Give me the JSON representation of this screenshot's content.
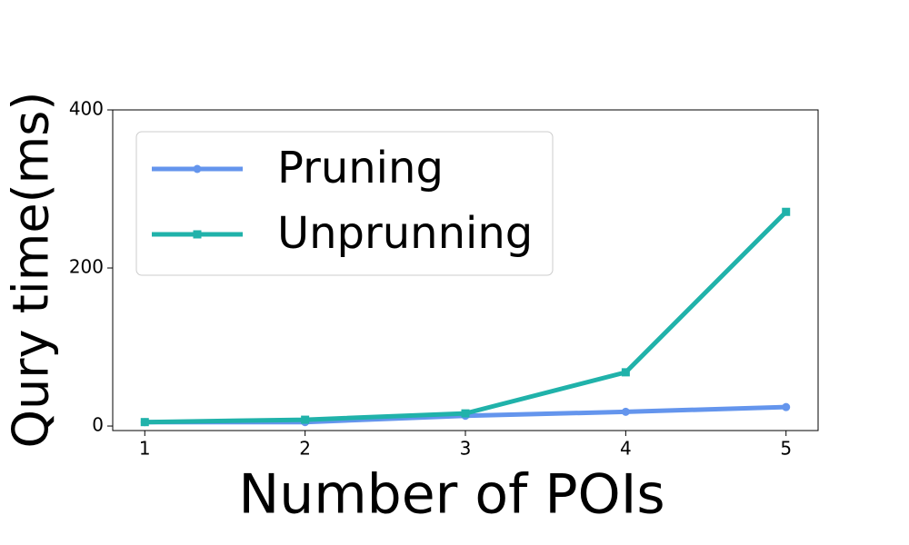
{
  "chart_data": {
    "type": "line",
    "x_label": "Number of POIs",
    "y_label": "Qury time(ms)",
    "x": [
      1,
      2,
      3,
      4,
      5
    ],
    "series": [
      {
        "name": "Pruning",
        "color": "#6495ed",
        "marker": "circle",
        "values": [
          5,
          5,
          13,
          18,
          24
        ]
      },
      {
        "name": "Unprunning",
        "color": "#20b2aa",
        "marker": "square",
        "values": [
          5,
          8,
          16,
          68,
          271
        ]
      }
    ],
    "xlim": [
      0.8,
      5.2
    ],
    "xticks": [
      1,
      2,
      3,
      4,
      5
    ],
    "ylim": [
      -5.7,
      400
    ],
    "yticks": [
      0,
      200,
      400
    ],
    "grid": false,
    "legend": "upper-left"
  }
}
